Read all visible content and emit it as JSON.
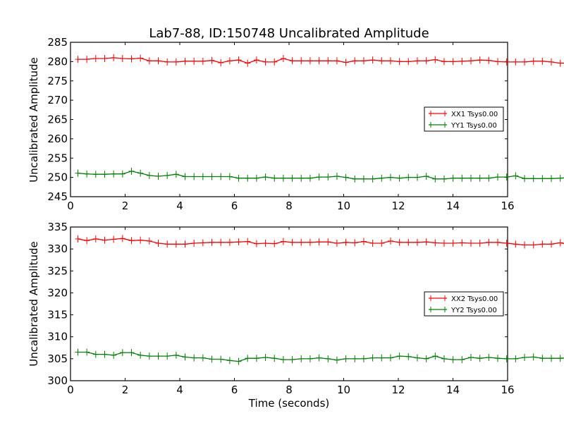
{
  "chart_data": [
    {
      "type": "line",
      "title": "Lab7-88, ID:150748 Uncalibrated Amplitude",
      "xlabel": "",
      "ylabel": "Uncalibrated Amplitude",
      "xlim": [
        0,
        16
      ],
      "ylim": [
        245,
        285
      ],
      "xticks": [
        "0",
        "2",
        "4",
        "6",
        "8",
        "10",
        "12",
        "14",
        "16"
      ],
      "yticks": [
        "245",
        "250",
        "255",
        "260",
        "265",
        "270",
        "275",
        "280",
        "285"
      ],
      "xtick_values": [
        0,
        2,
        4,
        6,
        8,
        10,
        12,
        14,
        16
      ],
      "ytick_values": [
        245,
        250,
        255,
        260,
        265,
        270,
        275,
        280,
        285
      ],
      "legend_position": "center-right",
      "x_start": 0.27,
      "x_step": 0.327,
      "series": [
        {
          "name": "XX1 Tsys0.00",
          "color": "#ff0000",
          "values": [
            280.6,
            280.6,
            280.8,
            280.8,
            281.0,
            280.8,
            280.7,
            280.9,
            280.2,
            280.2,
            279.9,
            279.9,
            280.1,
            280.1,
            280.1,
            280.3,
            279.7,
            280.2,
            280.4,
            279.6,
            280.4,
            279.9,
            279.9,
            280.8,
            280.2,
            280.2,
            280.2,
            280.2,
            280.2,
            280.2,
            279.8,
            280.2,
            280.2,
            280.4,
            280.2,
            280.2,
            280.0,
            280.0,
            280.2,
            280.2,
            280.5,
            280.0,
            280.0,
            280.1,
            280.2,
            280.4,
            280.3,
            280.0,
            279.9,
            279.9,
            279.9,
            280.1,
            280.1,
            279.9,
            279.6,
            279.6
          ]
        },
        {
          "name": "YY1 Tsys0.00",
          "color": "#008000",
          "values": [
            251.1,
            250.9,
            250.8,
            250.8,
            250.9,
            250.9,
            251.6,
            251.1,
            250.5,
            250.3,
            250.5,
            250.8,
            250.2,
            250.2,
            250.2,
            250.2,
            250.2,
            250.2,
            249.8,
            249.8,
            249.8,
            250.1,
            249.8,
            249.8,
            249.8,
            249.8,
            249.8,
            250.1,
            250.1,
            250.3,
            250.0,
            249.6,
            249.6,
            249.6,
            249.8,
            250.0,
            249.8,
            250.0,
            250.0,
            250.3,
            249.6,
            249.6,
            249.8,
            249.8,
            249.8,
            249.8,
            249.8,
            250.1,
            250.1,
            250.4,
            249.7,
            249.7,
            249.7,
            249.7,
            249.8,
            250.0
          ]
        }
      ]
    },
    {
      "type": "line",
      "title": "",
      "xlabel": "Time (seconds)",
      "ylabel": "Uncalibrated Amplitude",
      "xlim": [
        0,
        16
      ],
      "ylim": [
        300,
        335
      ],
      "xticks": [
        "0",
        "2",
        "4",
        "6",
        "8",
        "10",
        "12",
        "14",
        "16"
      ],
      "yticks": [
        "300",
        "305",
        "310",
        "315",
        "320",
        "325",
        "330",
        "335"
      ],
      "xtick_values": [
        0,
        2,
        4,
        6,
        8,
        10,
        12,
        14,
        16
      ],
      "ytick_values": [
        300,
        305,
        310,
        315,
        320,
        325,
        330,
        335
      ],
      "legend_position": "center-right",
      "x_start": 0.27,
      "x_step": 0.327,
      "series": [
        {
          "name": "XX2 Tsys0.00",
          "color": "#ff0000",
          "values": [
            332.3,
            331.9,
            332.3,
            332.0,
            332.2,
            332.4,
            331.9,
            332.0,
            331.8,
            331.3,
            331.1,
            331.1,
            331.1,
            331.3,
            331.4,
            331.5,
            331.5,
            331.5,
            331.6,
            331.7,
            331.2,
            331.3,
            331.2,
            331.7,
            331.5,
            331.5,
            331.5,
            331.6,
            331.6,
            331.3,
            331.5,
            331.4,
            331.7,
            331.3,
            331.3,
            331.8,
            331.5,
            331.5,
            331.5,
            331.6,
            331.4,
            331.3,
            331.3,
            331.4,
            331.3,
            331.3,
            331.5,
            331.5,
            331.3,
            331.1,
            330.9,
            330.9,
            331.1,
            331.1,
            331.4,
            331.0
          ]
        },
        {
          "name": "YY2 Tsys0.00",
          "color": "#008000",
          "values": [
            306.5,
            306.5,
            306.0,
            306.0,
            305.8,
            306.4,
            306.4,
            305.8,
            305.6,
            305.6,
            305.6,
            305.8,
            305.4,
            305.2,
            305.2,
            304.9,
            304.9,
            304.6,
            304.4,
            305.1,
            305.1,
            305.3,
            305.1,
            304.8,
            304.8,
            305.0,
            305.0,
            305.2,
            305.0,
            304.7,
            305.0,
            305.0,
            305.0,
            305.2,
            305.2,
            305.2,
            305.6,
            305.5,
            305.2,
            305.0,
            305.6,
            305.0,
            304.8,
            304.8,
            305.3,
            305.1,
            305.3,
            305.1,
            305.0,
            305.0,
            305.3,
            305.4,
            305.1,
            305.1,
            305.1,
            305.2
          ]
        }
      ]
    }
  ]
}
